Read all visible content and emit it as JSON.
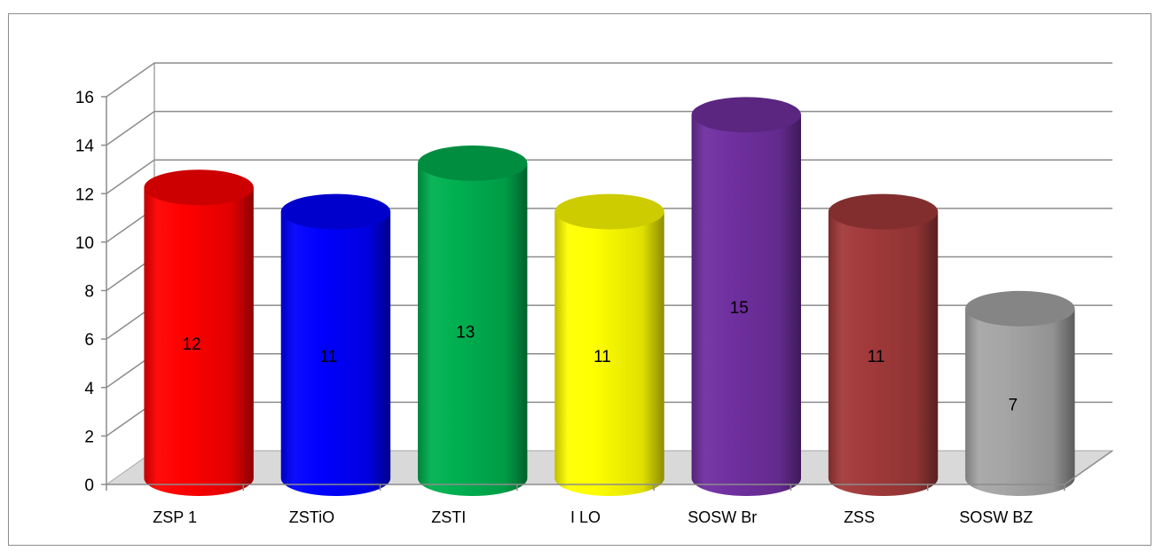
{
  "chart_data": {
    "type": "bar",
    "style": "3d-cylinder",
    "categories": [
      "ZSP 1",
      "ZSTiO",
      "ZSTI",
      "I LO",
      "SOSW Br",
      "ZSS",
      "SOSW BZ"
    ],
    "values": [
      12,
      11,
      13,
      11,
      15,
      11,
      7
    ],
    "data_labels": [
      "12",
      "11",
      "13",
      "11",
      "15",
      "11",
      "7"
    ],
    "colors": [
      "#ff0000",
      "#0000ff",
      "#00b050",
      "#ffff00",
      "#7030a0",
      "#a23a3a",
      "#a6a6a6"
    ],
    "ylim": [
      0,
      16
    ],
    "yticks": [
      0,
      2,
      4,
      6,
      8,
      10,
      12,
      14,
      16
    ],
    "ytick_labels": [
      "0",
      "2",
      "4",
      "6",
      "8",
      "10",
      "12",
      "14",
      "16"
    ],
    "grid": true,
    "legend": "none",
    "title": "",
    "xlabel": "",
    "ylabel": ""
  }
}
